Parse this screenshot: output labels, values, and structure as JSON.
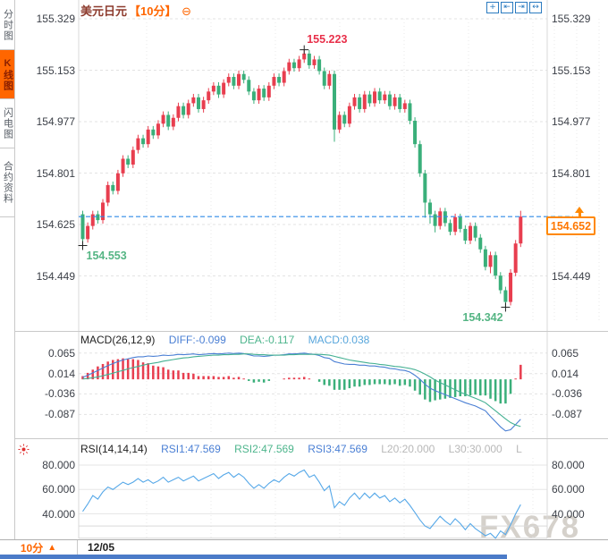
{
  "header": {
    "symbol": "美元日元",
    "period_tag": "【10分】",
    "settings_glyph": "⊖",
    "toolbar": [
      {
        "name": "crosshair-icon",
        "glyph": "+"
      },
      {
        "name": "scale-left-icon",
        "glyph": "⇤"
      },
      {
        "name": "scale-right-icon",
        "glyph": "⇥"
      },
      {
        "name": "pan-icon",
        "glyph": "↔"
      }
    ]
  },
  "sidebar": {
    "tabs": [
      {
        "label": "分时图",
        "active": false
      },
      {
        "label": "K线图",
        "active": true
      },
      {
        "label": "闪电图",
        "active": false
      },
      {
        "label": "合约资料",
        "active": false
      }
    ]
  },
  "footer": {
    "period": "10分",
    "arrow": "▲",
    "date": "12/05"
  },
  "watermark": "FX678",
  "colors": {
    "up": "#e83e4f",
    "down": "#3aaf7a",
    "diff_line": "#4a7fd4",
    "dea_line": "#44b092",
    "rsi_line": "#56a8e8",
    "accent_orange": "#ff6600",
    "price_line_blue": "#2f8be6",
    "grid": "#e3e3e3",
    "separator": "#c9c9c9",
    "cross": "#222222"
  },
  "chart_data": [
    {
      "type": "candlestick",
      "title": "美元日元 10分",
      "y_ticks": [
        "155.329",
        "155.153",
        "154.977",
        "154.801",
        "154.625",
        "154.449"
      ],
      "right_axis_hidden_tick_index": 4,
      "annotations": {
        "high": {
          "text": "155.223",
          "value": 155.223,
          "index": 44
        },
        "low_start": {
          "text": "154.553",
          "value": 154.553,
          "index": 0
        },
        "low_end": {
          "text": "154.342",
          "value": 154.342,
          "index": 84
        },
        "last": {
          "text": "154.652",
          "value": 154.652
        }
      },
      "ohlc": [
        [
          154.66,
          154.672,
          154.553,
          154.575
        ],
        [
          154.575,
          154.632,
          154.563,
          154.62
        ],
        [
          154.62,
          154.672,
          154.608,
          154.66
        ],
        [
          154.66,
          154.672,
          154.628,
          154.64
        ],
        [
          154.64,
          154.712,
          154.628,
          154.7
        ],
        [
          154.7,
          154.772,
          154.688,
          154.76
        ],
        [
          154.76,
          154.772,
          154.728,
          154.74
        ],
        [
          154.74,
          154.812,
          154.728,
          154.8
        ],
        [
          154.8,
          154.862,
          154.788,
          154.85
        ],
        [
          154.85,
          154.862,
          154.818,
          154.83
        ],
        [
          154.83,
          154.892,
          154.818,
          154.88
        ],
        [
          154.88,
          154.932,
          154.868,
          154.92
        ],
        [
          154.92,
          154.932,
          154.888,
          154.9
        ],
        [
          154.9,
          154.962,
          154.888,
          154.95
        ],
        [
          154.95,
          154.962,
          154.918,
          154.93
        ],
        [
          154.93,
          154.982,
          154.918,
          154.97
        ],
        [
          154.97,
          155.012,
          154.958,
          155.0
        ],
        [
          155.0,
          155.012,
          154.948,
          154.96
        ],
        [
          154.96,
          155.002,
          154.948,
          154.99
        ],
        [
          154.99,
          155.042,
          154.978,
          155.03
        ],
        [
          155.03,
          155.042,
          154.988,
          155.0
        ],
        [
          155.0,
          155.052,
          154.988,
          155.04
        ],
        [
          155.04,
          155.072,
          155.028,
          155.06
        ],
        [
          155.06,
          155.072,
          155.008,
          155.02
        ],
        [
          155.02,
          155.062,
          155.008,
          155.05
        ],
        [
          155.05,
          155.092,
          155.038,
          155.08
        ],
        [
          155.08,
          155.112,
          155.068,
          155.1
        ],
        [
          155.1,
          155.112,
          155.058,
          155.07
        ],
        [
          155.07,
          155.122,
          155.058,
          155.11
        ],
        [
          155.11,
          155.142,
          155.098,
          155.13
        ],
        [
          155.13,
          155.142,
          155.088,
          155.1
        ],
        [
          155.1,
          155.152,
          155.088,
          155.14
        ],
        [
          155.14,
          155.152,
          155.108,
          155.12
        ],
        [
          155.12,
          155.132,
          155.068,
          155.08
        ],
        [
          155.08,
          155.092,
          155.038,
          155.05
        ],
        [
          155.05,
          155.102,
          155.038,
          155.09
        ],
        [
          155.09,
          155.102,
          155.048,
          155.06
        ],
        [
          155.06,
          155.112,
          155.048,
          155.1
        ],
        [
          155.1,
          155.142,
          155.088,
          155.13
        ],
        [
          155.13,
          155.142,
          155.098,
          155.11
        ],
        [
          155.11,
          155.162,
          155.098,
          155.15
        ],
        [
          155.15,
          155.192,
          155.138,
          155.18
        ],
        [
          155.18,
          155.192,
          155.148,
          155.16
        ],
        [
          155.16,
          155.202,
          155.148,
          155.19
        ],
        [
          155.19,
          155.223,
          155.178,
          155.21
        ],
        [
          155.21,
          155.222,
          155.158,
          155.17
        ],
        [
          155.17,
          155.202,
          155.158,
          155.19
        ],
        [
          155.19,
          155.202,
          155.138,
          155.15
        ],
        [
          155.15,
          155.162,
          155.088,
          155.1
        ],
        [
          155.1,
          155.152,
          155.088,
          155.14
        ],
        [
          155.14,
          155.152,
          154.908,
          154.95
        ],
        [
          154.95,
          155.012,
          154.938,
          155.0
        ],
        [
          155.0,
          155.012,
          154.958,
          154.97
        ],
        [
          154.97,
          155.042,
          154.958,
          155.03
        ],
        [
          155.03,
          155.072,
          155.018,
          155.06
        ],
        [
          155.06,
          155.072,
          155.008,
          155.02
        ],
        [
          155.02,
          155.082,
          155.008,
          155.07
        ],
        [
          155.07,
          155.082,
          155.028,
          155.04
        ],
        [
          155.04,
          155.092,
          155.028,
          155.08
        ],
        [
          155.08,
          155.092,
          155.038,
          155.05
        ],
        [
          155.05,
          155.082,
          155.038,
          155.07
        ],
        [
          155.07,
          155.082,
          155.018,
          155.03
        ],
        [
          155.03,
          155.072,
          155.018,
          155.06
        ],
        [
          155.06,
          155.072,
          155.008,
          155.02
        ],
        [
          155.02,
          155.052,
          155.008,
          155.04
        ],
        [
          155.04,
          155.052,
          154.968,
          154.98
        ],
        [
          154.98,
          154.992,
          154.888,
          154.9
        ],
        [
          154.9,
          154.912,
          154.788,
          154.8
        ],
        [
          154.8,
          154.812,
          154.648,
          154.7
        ],
        [
          154.7,
          154.712,
          154.628,
          154.66
        ],
        [
          154.66,
          154.672,
          154.598,
          154.62
        ],
        [
          154.62,
          154.682,
          154.608,
          154.67
        ],
        [
          154.67,
          154.682,
          154.618,
          154.63
        ],
        [
          154.63,
          154.642,
          154.588,
          154.6
        ],
        [
          154.6,
          154.662,
          154.588,
          154.65
        ],
        [
          154.65,
          154.662,
          154.598,
          154.61
        ],
        [
          154.61,
          154.622,
          154.558,
          154.57
        ],
        [
          154.57,
          154.632,
          154.558,
          154.62
        ],
        [
          154.62,
          154.632,
          154.568,
          154.58
        ],
        [
          154.58,
          154.592,
          154.528,
          154.54
        ],
        [
          154.54,
          154.552,
          154.468,
          154.48
        ],
        [
          154.48,
          154.532,
          154.458,
          154.52
        ],
        [
          154.52,
          154.532,
          154.438,
          154.45
        ],
        [
          154.45,
          154.462,
          154.388,
          154.4
        ],
        [
          154.4,
          154.412,
          154.342,
          154.36
        ],
        [
          154.36,
          154.472,
          154.348,
          154.46
        ],
        [
          154.46,
          154.572,
          154.448,
          154.56
        ],
        [
          154.56,
          154.672,
          154.548,
          154.652
        ]
      ]
    },
    {
      "type": "macd",
      "title": "MACD(26,12,9)",
      "legend": {
        "diff": "DIFF:-0.099",
        "dea": "DEA:-0.117",
        "macd": "MACD:0.038"
      },
      "y_ticks": [
        "0.065",
        "0.014",
        "-0.036",
        "-0.087"
      ],
      "histogram_rule": "2*(diff-dea), red when positive, green when negative",
      "diff": [
        0.005,
        0.01,
        0.016,
        0.022,
        0.028,
        0.034,
        0.039,
        0.044,
        0.048,
        0.051,
        0.054,
        0.056,
        0.056,
        0.058,
        0.057,
        0.058,
        0.06,
        0.059,
        0.06,
        0.062,
        0.061,
        0.062,
        0.063,
        0.061,
        0.062,
        0.063,
        0.064,
        0.063,
        0.064,
        0.065,
        0.064,
        0.065,
        0.064,
        0.061,
        0.058,
        0.058,
        0.057,
        0.058,
        0.06,
        0.06,
        0.061,
        0.063,
        0.063,
        0.064,
        0.065,
        0.063,
        0.062,
        0.059,
        0.054,
        0.052,
        0.044,
        0.041,
        0.038,
        0.037,
        0.037,
        0.035,
        0.035,
        0.033,
        0.033,
        0.031,
        0.03,
        0.027,
        0.026,
        0.023,
        0.022,
        0.018,
        0.01,
        0.0,
        -0.012,
        -0.022,
        -0.028,
        -0.033,
        -0.038,
        -0.043,
        -0.048,
        -0.053,
        -0.058,
        -0.062,
        -0.066,
        -0.072,
        -0.078,
        -0.092,
        -0.105,
        -0.118,
        -0.128,
        -0.125,
        -0.112,
        -0.099
      ],
      "dea": [
        0.001,
        0.002,
        0.004,
        0.006,
        0.009,
        0.012,
        0.015,
        0.019,
        0.022,
        0.026,
        0.029,
        0.032,
        0.035,
        0.038,
        0.04,
        0.042,
        0.045,
        0.047,
        0.049,
        0.051,
        0.053,
        0.054,
        0.056,
        0.057,
        0.058,
        0.059,
        0.06,
        0.06,
        0.061,
        0.061,
        0.062,
        0.062,
        0.063,
        0.063,
        0.062,
        0.061,
        0.061,
        0.06,
        0.06,
        0.06,
        0.06,
        0.061,
        0.061,
        0.062,
        0.062,
        0.062,
        0.062,
        0.062,
        0.061,
        0.06,
        0.057,
        0.054,
        0.051,
        0.048,
        0.046,
        0.044,
        0.042,
        0.04,
        0.039,
        0.037,
        0.036,
        0.034,
        0.032,
        0.031,
        0.029,
        0.027,
        0.024,
        0.019,
        0.013,
        0.006,
        -0.002,
        -0.008,
        -0.014,
        -0.02,
        -0.026,
        -0.032,
        -0.037,
        -0.042,
        -0.047,
        -0.052,
        -0.058,
        -0.068,
        -0.078,
        -0.088,
        -0.098,
        -0.107,
        -0.113,
        -0.117
      ]
    },
    {
      "type": "rsi",
      "title": "RSI(14,14,14)",
      "legend": {
        "rsi1": "RSI1:47.569",
        "rsi2": "RSI2:47.569",
        "rsi3": "RSI3:47.569",
        "l20": "L20:20.000",
        "l30": "L30:30.000",
        "l_extra": "L"
      },
      "y_ticks": [
        "80.000",
        "60.000",
        "40.000"
      ],
      "ref_levels": [
        30,
        20
      ],
      "values": [
        42,
        48,
        55,
        52,
        58,
        62,
        60,
        63,
        66,
        64,
        66,
        69,
        66,
        68,
        65,
        67,
        70,
        66,
        68,
        70,
        67,
        69,
        71,
        67,
        69,
        71,
        73,
        69,
        72,
        74,
        70,
        73,
        70,
        65,
        61,
        64,
        61,
        65,
        68,
        66,
        70,
        73,
        71,
        74,
        76,
        70,
        72,
        66,
        59,
        63,
        45,
        50,
        47,
        53,
        57,
        52,
        57,
        53,
        57,
        53,
        55,
        50,
        53,
        49,
        52,
        47,
        41,
        35,
        30,
        28,
        33,
        38,
        34,
        31,
        36,
        32,
        27,
        32,
        28,
        25,
        22,
        24,
        20,
        26,
        23,
        31,
        40,
        47.569
      ]
    }
  ]
}
